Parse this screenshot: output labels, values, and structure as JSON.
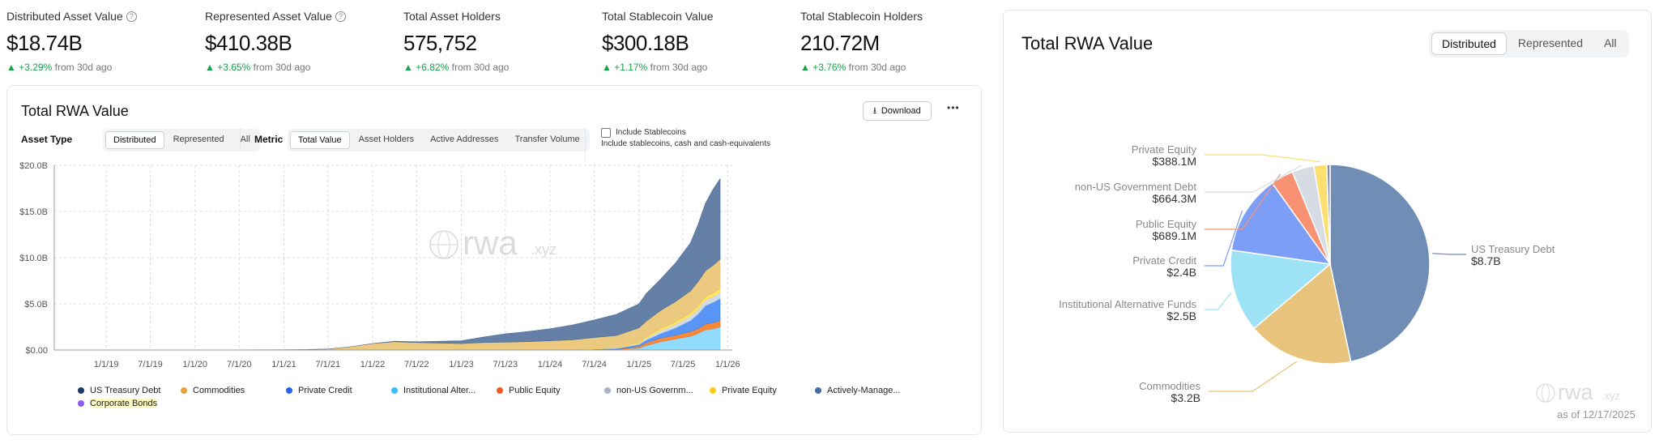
{
  "stats": [
    {
      "label": "Distributed Asset Value",
      "value": "$18.74B",
      "change": "+3.29%",
      "suffix": "from 30d ago",
      "help": true
    },
    {
      "label": "Represented Asset Value",
      "value": "$410.38B",
      "change": "+3.65%",
      "suffix": "from 30d ago",
      "help": true
    },
    {
      "label": "Total Asset Holders",
      "value": "575,752",
      "change": "+6.82%",
      "suffix": "from 30d ago",
      "help": false
    },
    {
      "label": "Total Stablecoin Value",
      "value": "$300.18B",
      "change": "+1.17%",
      "suffix": "from 30d ago",
      "help": false
    },
    {
      "label": "Total Stablecoin Holders",
      "value": "210.72M",
      "change": "+3.76%",
      "suffix": "from 30d ago",
      "help": false
    }
  ],
  "left": {
    "title": "Total RWA Value",
    "download_label": "Download",
    "more_label": "•••",
    "asset_type_label": "Asset Type",
    "asset_type_options": [
      "Distributed",
      "Represented",
      "All"
    ],
    "metric_label": "Metric",
    "metric_options": [
      "Total Value",
      "Asset Holders",
      "Active Addresses",
      "Transfer Volume"
    ],
    "include_label": "Include Stablecoins",
    "include_desc": "Include stablecoins, cash and cash-equivalents",
    "watermark": "rwa",
    "watermark_suffix": ".xyz"
  },
  "right": {
    "title": "Total RWA Value",
    "options": [
      "Distributed",
      "Represented",
      "All"
    ],
    "as_of": "as of 12/17/2025",
    "watermark": "rwa",
    "watermark_suffix": ".xyz"
  },
  "chart_data": [
    {
      "type": "area",
      "title": "Total RWA Value",
      "stacked": true,
      "x": [
        "2018-06",
        "2019-01",
        "2019-07",
        "2020-01",
        "2020-07",
        "2021-01",
        "2021-04",
        "2021-07",
        "2021-10",
        "2022-01",
        "2022-04",
        "2022-07",
        "2022-10",
        "2023-01",
        "2023-04",
        "2023-07",
        "2023-10",
        "2024-01",
        "2024-04",
        "2024-07",
        "2024-10",
        "2025-01",
        "2025-02",
        "2025-04",
        "2025-06",
        "2025-08",
        "2025-09",
        "2025-10",
        "2025-11",
        "2025-12"
      ],
      "x_tick_labels": [
        "1/1/19",
        "7/1/19",
        "1/1/20",
        "7/1/20",
        "1/1/21",
        "7/1/21",
        "1/1/22",
        "7/1/22",
        "1/1/23",
        "7/1/23",
        "1/1/24",
        "7/1/24",
        "1/1/25",
        "7/1/25",
        "1/1/26"
      ],
      "y_tick_labels": [
        "$0.00",
        "$5.0B",
        "$10.0B",
        "$15.0B",
        "$20.0B"
      ],
      "ylim": [
        0,
        20
      ],
      "y_unit": "B",
      "grid": true,
      "legend": "bottom",
      "series": [
        {
          "name": "Institutional Alternative Funds",
          "color": "#7dd3fc",
          "values": [
            0,
            0,
            0,
            0,
            0,
            0,
            0,
            0,
            0,
            0,
            0,
            0,
            0,
            0,
            0,
            0,
            0,
            0,
            0,
            0,
            0.05,
            0.2,
            0.5,
            0.9,
            1.2,
            1.5,
            1.8,
            2.2,
            2.3,
            2.5
          ]
        },
        {
          "name": "Public Equity",
          "color": "#f97316",
          "values": [
            0,
            0,
            0,
            0,
            0,
            0,
            0,
            0,
            0,
            0,
            0,
            0,
            0,
            0,
            0,
            0,
            0,
            0,
            0,
            0,
            0.02,
            0.2,
            0.3,
            0.4,
            0.4,
            0.5,
            0.5,
            0.6,
            0.65,
            0.69
          ]
        },
        {
          "name": "Private Credit",
          "color": "#3b82f6",
          "values": [
            0,
            0,
            0,
            0,
            0,
            0,
            0,
            0,
            0,
            0,
            0,
            0,
            0,
            0,
            0,
            0,
            0,
            0,
            0,
            0.1,
            0.1,
            0.2,
            0.3,
            0.5,
            0.8,
            1.2,
            1.6,
            2.0,
            2.2,
            2.4
          ]
        },
        {
          "name": "non-US Government Debt",
          "color": "#cbd5e1",
          "values": [
            0,
            0,
            0,
            0,
            0,
            0,
            0,
            0,
            0,
            0,
            0,
            0,
            0,
            0,
            0,
            0,
            0,
            0,
            0,
            0,
            0.05,
            0.1,
            0.2,
            0.3,
            0.4,
            0.5,
            0.55,
            0.6,
            0.62,
            0.66
          ]
        },
        {
          "name": "Private Equity",
          "color": "#fde047",
          "values": [
            0,
            0,
            0,
            0,
            0,
            0,
            0,
            0,
            0,
            0,
            0,
            0,
            0,
            0,
            0,
            0,
            0,
            0,
            0,
            0.05,
            0.05,
            0.1,
            0.15,
            0.2,
            0.25,
            0.3,
            0.33,
            0.36,
            0.38,
            0.39
          ]
        },
        {
          "name": "Commodities",
          "color": "#e8c16a",
          "values": [
            0,
            0,
            0,
            0.01,
            0.02,
            0.03,
            0.05,
            0.1,
            0.35,
            0.7,
            0.9,
            0.8,
            0.75,
            0.7,
            0.8,
            0.85,
            0.9,
            1.0,
            1.1,
            1.2,
            1.3,
            1.6,
            1.7,
            2.0,
            2.2,
            2.4,
            2.6,
            2.8,
            3.0,
            3.2
          ]
        },
        {
          "name": "US Treasury Debt",
          "color": "#4a6a96",
          "values": [
            0,
            0,
            0,
            0,
            0,
            0,
            0,
            0,
            0,
            0,
            0.05,
            0.1,
            0.2,
            0.3,
            0.6,
            0.9,
            1.1,
            1.3,
            1.6,
            1.9,
            2.3,
            2.6,
            3.0,
            3.4,
            4.2,
            5.2,
            6.2,
            7.3,
            8.2,
            8.7
          ]
        }
      ],
      "legend_entries": [
        {
          "name": "US Treasury Debt",
          "color": "#1f3a68"
        },
        {
          "name": "Commodities",
          "color": "#e8a13a"
        },
        {
          "name": "Private Credit",
          "color": "#2563eb"
        },
        {
          "name": "Institutional Alter...",
          "color": "#38bdf8"
        },
        {
          "name": "Public Equity",
          "color": "#f05a22"
        },
        {
          "name": "non-US Governm...",
          "color": "#a8b4c6"
        },
        {
          "name": "Private Equity",
          "color": "#facc15"
        },
        {
          "name": "Actively-Manage...",
          "color": "#3f6ea8"
        },
        {
          "name": "Corporate Bonds",
          "color": "#8b5cf6"
        }
      ]
    },
    {
      "type": "pie",
      "title": "Total RWA Value",
      "slices": [
        {
          "label": "US Treasury Debt",
          "display": "$8.7B",
          "value": 8.7,
          "color": "#6f8db5"
        },
        {
          "label": "Commodities",
          "display": "$3.2B",
          "value": 3.2,
          "color": "#e8c37b"
        },
        {
          "label": "Institutional Alternative Funds",
          "display": "$2.5B",
          "value": 2.5,
          "color": "#9ee3f5"
        },
        {
          "label": "Private Credit",
          "display": "$2.4B",
          "value": 2.4,
          "color": "#7d9ef7"
        },
        {
          "label": "Public Equity",
          "display": "$689.1M",
          "value": 0.6891,
          "color": "#f89272"
        },
        {
          "label": "non-US Government Debt",
          "display": "$664.3M",
          "value": 0.6643,
          "color": "#d6dbe4"
        },
        {
          "label": "Private Equity",
          "display": "$388.1M",
          "value": 0.3881,
          "color": "#fbdf70"
        },
        {
          "label": "",
          "display": "",
          "value": 0.1,
          "color": "#7c8ea8"
        }
      ]
    }
  ]
}
